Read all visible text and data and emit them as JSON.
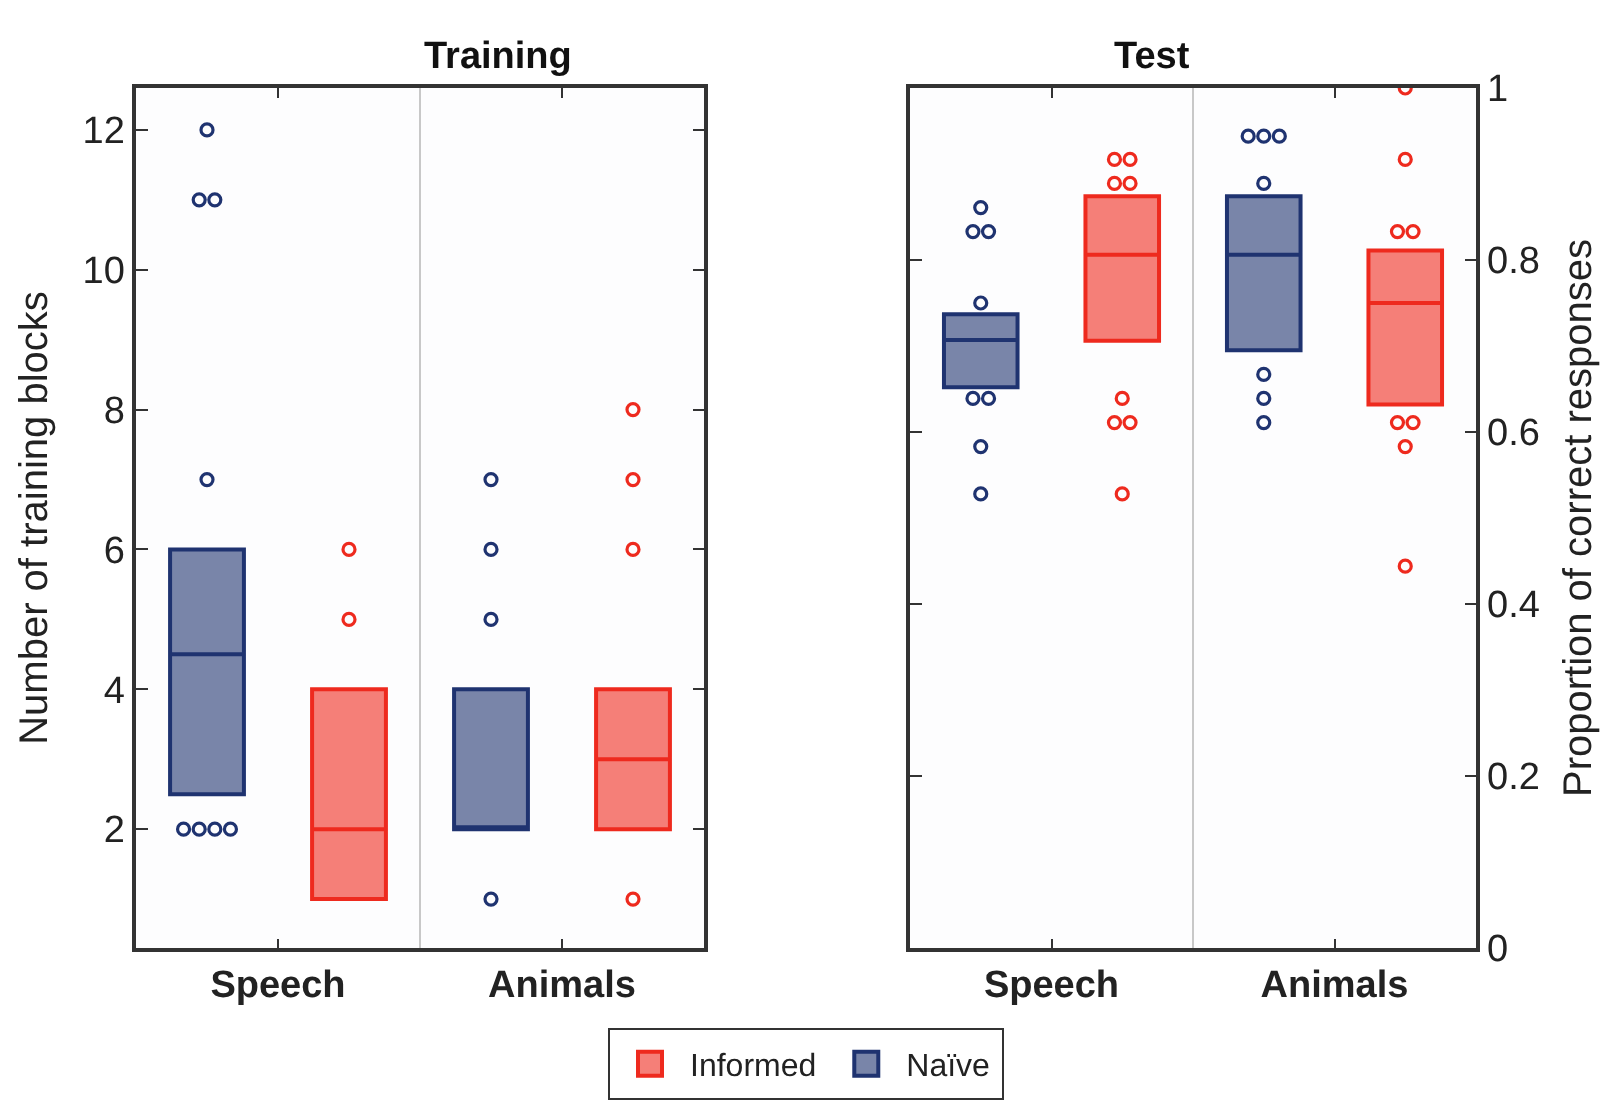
{
  "chart_data": [
    {
      "type": "box",
      "title": "Training",
      "categories": [
        "Speech",
        "Animals"
      ],
      "ylabel": "Number of training blocks",
      "ylim": [
        0.3,
        12.6
      ],
      "yticks": [
        2,
        4,
        6,
        8,
        10,
        12
      ],
      "legend": "bottom",
      "series": [
        {
          "name": "Naïve",
          "color": "#1f3370",
          "boxes": [
            {
              "low": 2.5,
              "q1": 2.5,
              "median": 4.5,
              "q3": 6,
              "high": 6,
              "outliers": [
                12,
                11,
                11,
                7,
                2,
                2,
                2,
                2
              ]
            },
            {
              "low": 2,
              "q1": 2,
              "median": 2,
              "q3": 4,
              "high": 4,
              "outliers": [
                7,
                6,
                5,
                1
              ]
            }
          ]
        },
        {
          "name": "Informed",
          "color": "#ee2a1e",
          "boxes": [
            {
              "low": 1,
              "q1": 1,
              "median": 2,
              "q3": 4,
              "high": 4,
              "outliers": [
                6,
                5
              ]
            },
            {
              "low": 2,
              "q1": 2,
              "median": 3,
              "q3": 4,
              "high": 4,
              "outliers": [
                8,
                7,
                6,
                1
              ]
            }
          ]
        }
      ]
    },
    {
      "type": "box",
      "title": "Test",
      "categories": [
        "Speech",
        "Animals"
      ],
      "y2label": "Proportion of correct responses",
      "y2lim": [
        0,
        1
      ],
      "y2ticks": [
        0,
        0.2,
        0.4,
        0.6,
        0.8,
        1
      ],
      "legend": "bottom",
      "series": [
        {
          "name": "Naïve",
          "color": "#1f3370",
          "axis": "y2",
          "boxes": [
            {
              "low": 0.652,
              "q1": 0.652,
              "median": 0.707,
              "q3": 0.737,
              "high": 0.737,
              "outliers": [
                0.861,
                0.833,
                0.833,
                0.75,
                0.639,
                0.639,
                0.583,
                0.528
              ]
            },
            {
              "low": 0.695,
              "q1": 0.695,
              "median": 0.806,
              "q3": 0.874,
              "high": 0.874,
              "outliers": [
                0.944,
                0.944,
                0.944,
                0.889,
                0.667,
                0.639,
                0.611
              ]
            }
          ]
        },
        {
          "name": "Informed",
          "color": "#ee2a1e",
          "axis": "y2",
          "boxes": [
            {
              "low": 0.706,
              "q1": 0.706,
              "median": 0.806,
              "q3": 0.874,
              "high": 0.874,
              "outliers": [
                0.917,
                0.917,
                0.889,
                0.889,
                0.639,
                0.611,
                0.611,
                0.528
              ]
            },
            {
              "low": 0.632,
              "q1": 0.632,
              "median": 0.75,
              "q3": 0.811,
              "high": 0.811,
              "outliers": [
                1.0,
                0.917,
                0.833,
                0.833,
                0.611,
                0.611,
                0.583,
                0.444
              ]
            }
          ]
        }
      ]
    }
  ]
}
